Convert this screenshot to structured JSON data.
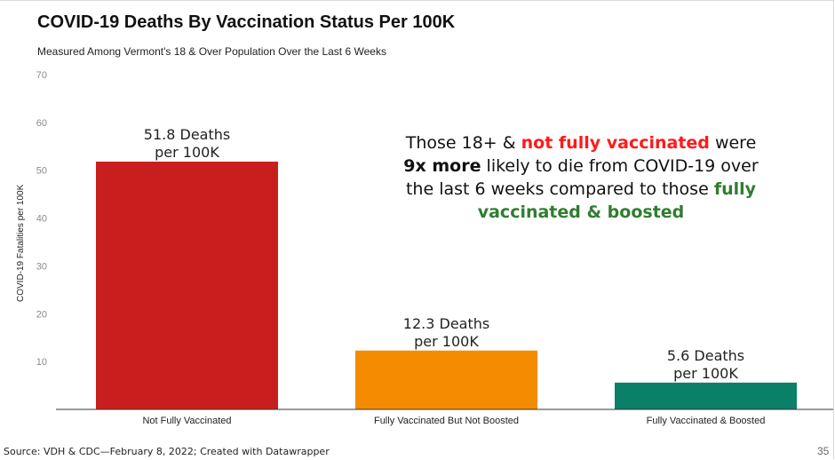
{
  "chart_data": {
    "type": "bar",
    "title": "COVID-19 Deaths By Vaccination Status Per 100K",
    "subtitle": "Measured Among Vermont's 18 & Over Population Over the Last 6 Weeks",
    "ylabel": "COVID-19 Fatalities per 100K",
    "xlabel": "",
    "ylim": [
      0,
      70
    ],
    "yticks": [
      10,
      20,
      30,
      40,
      50,
      60,
      70
    ],
    "grid": false,
    "categories": [
      "Not Fully Vaccinated",
      "Fully Vaccinated But Not Boosted",
      "Fully Vaccinated & Boosted"
    ],
    "values": [
      51.8,
      12.3,
      5.6
    ],
    "colors": [
      "#c81e1e",
      "#f58b00",
      "#0b8068"
    ],
    "data_labels": [
      [
        "51.8 Deaths",
        "per 100K"
      ],
      [
        "12.3 Deaths",
        "per 100K"
      ],
      [
        "5.6 Deaths",
        "per 100K"
      ]
    ]
  },
  "annotation": {
    "line1_pre": "Those 18+ & ",
    "line1_red": "not fully vaccinated",
    "line1_post": " were",
    "line2_bold": "9x more",
    "line2_post": " likely to die from COVID-19 over",
    "line3_pre": "the last 6 weeks compared to those ",
    "line3_green": "fully",
    "line4_green": "vaccinated & boosted",
    "colors": {
      "red": "#ff1a1a",
      "green": "#2f7d2f"
    }
  },
  "footer": {
    "source": "Source: VDH & CDC—February 8, 2022; Created with Datawrapper",
    "page_number": "35"
  }
}
